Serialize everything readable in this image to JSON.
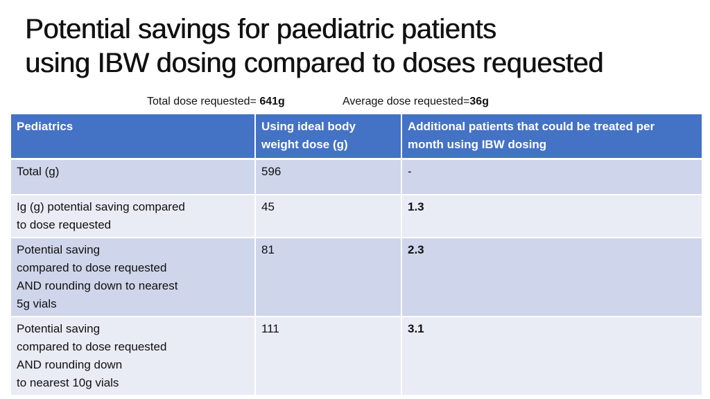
{
  "slide": {
    "title_lines": [
      "Potential savings for paediatric patients",
      "using IBW dosing compared to doses requested"
    ],
    "summary": {
      "total_label": "Total dose requested= ",
      "total_value": "641g",
      "average_label": "Average dose requested=",
      "average_value": "36g"
    }
  },
  "table": {
    "headers": [
      [
        "Pediatrics"
      ],
      [
        "Using ideal body",
        "weight dose (g)"
      ],
      [
        "Additional patients that could be treated per",
        "month using IBW dosing"
      ]
    ],
    "rows": [
      {
        "label_lines": [
          "Total (g)"
        ],
        "ibw_dose": "596",
        "additional_patients": "-"
      },
      {
        "label_lines": [
          "Ig (g) potential saving compared",
          "to dose requested"
        ],
        "ibw_dose": "45",
        "additional_patients": "1.3"
      },
      {
        "label_lines": [
          "Potential saving",
          "compared to dose requested",
          "AND rounding down to nearest",
          "5g vials"
        ],
        "ibw_dose": "81",
        "additional_patients": "2.3"
      },
      {
        "label_lines": [
          "Potential saving",
          "compared to dose requested",
          "AND rounding down",
          "to nearest 10g vials"
        ],
        "ibw_dose": "111",
        "additional_patients": "3.1"
      }
    ],
    "colors": {
      "header_bg": "#4472c4",
      "row_odd_bg": "#cfd5ea",
      "row_even_bg": "#e9ebf5"
    }
  }
}
